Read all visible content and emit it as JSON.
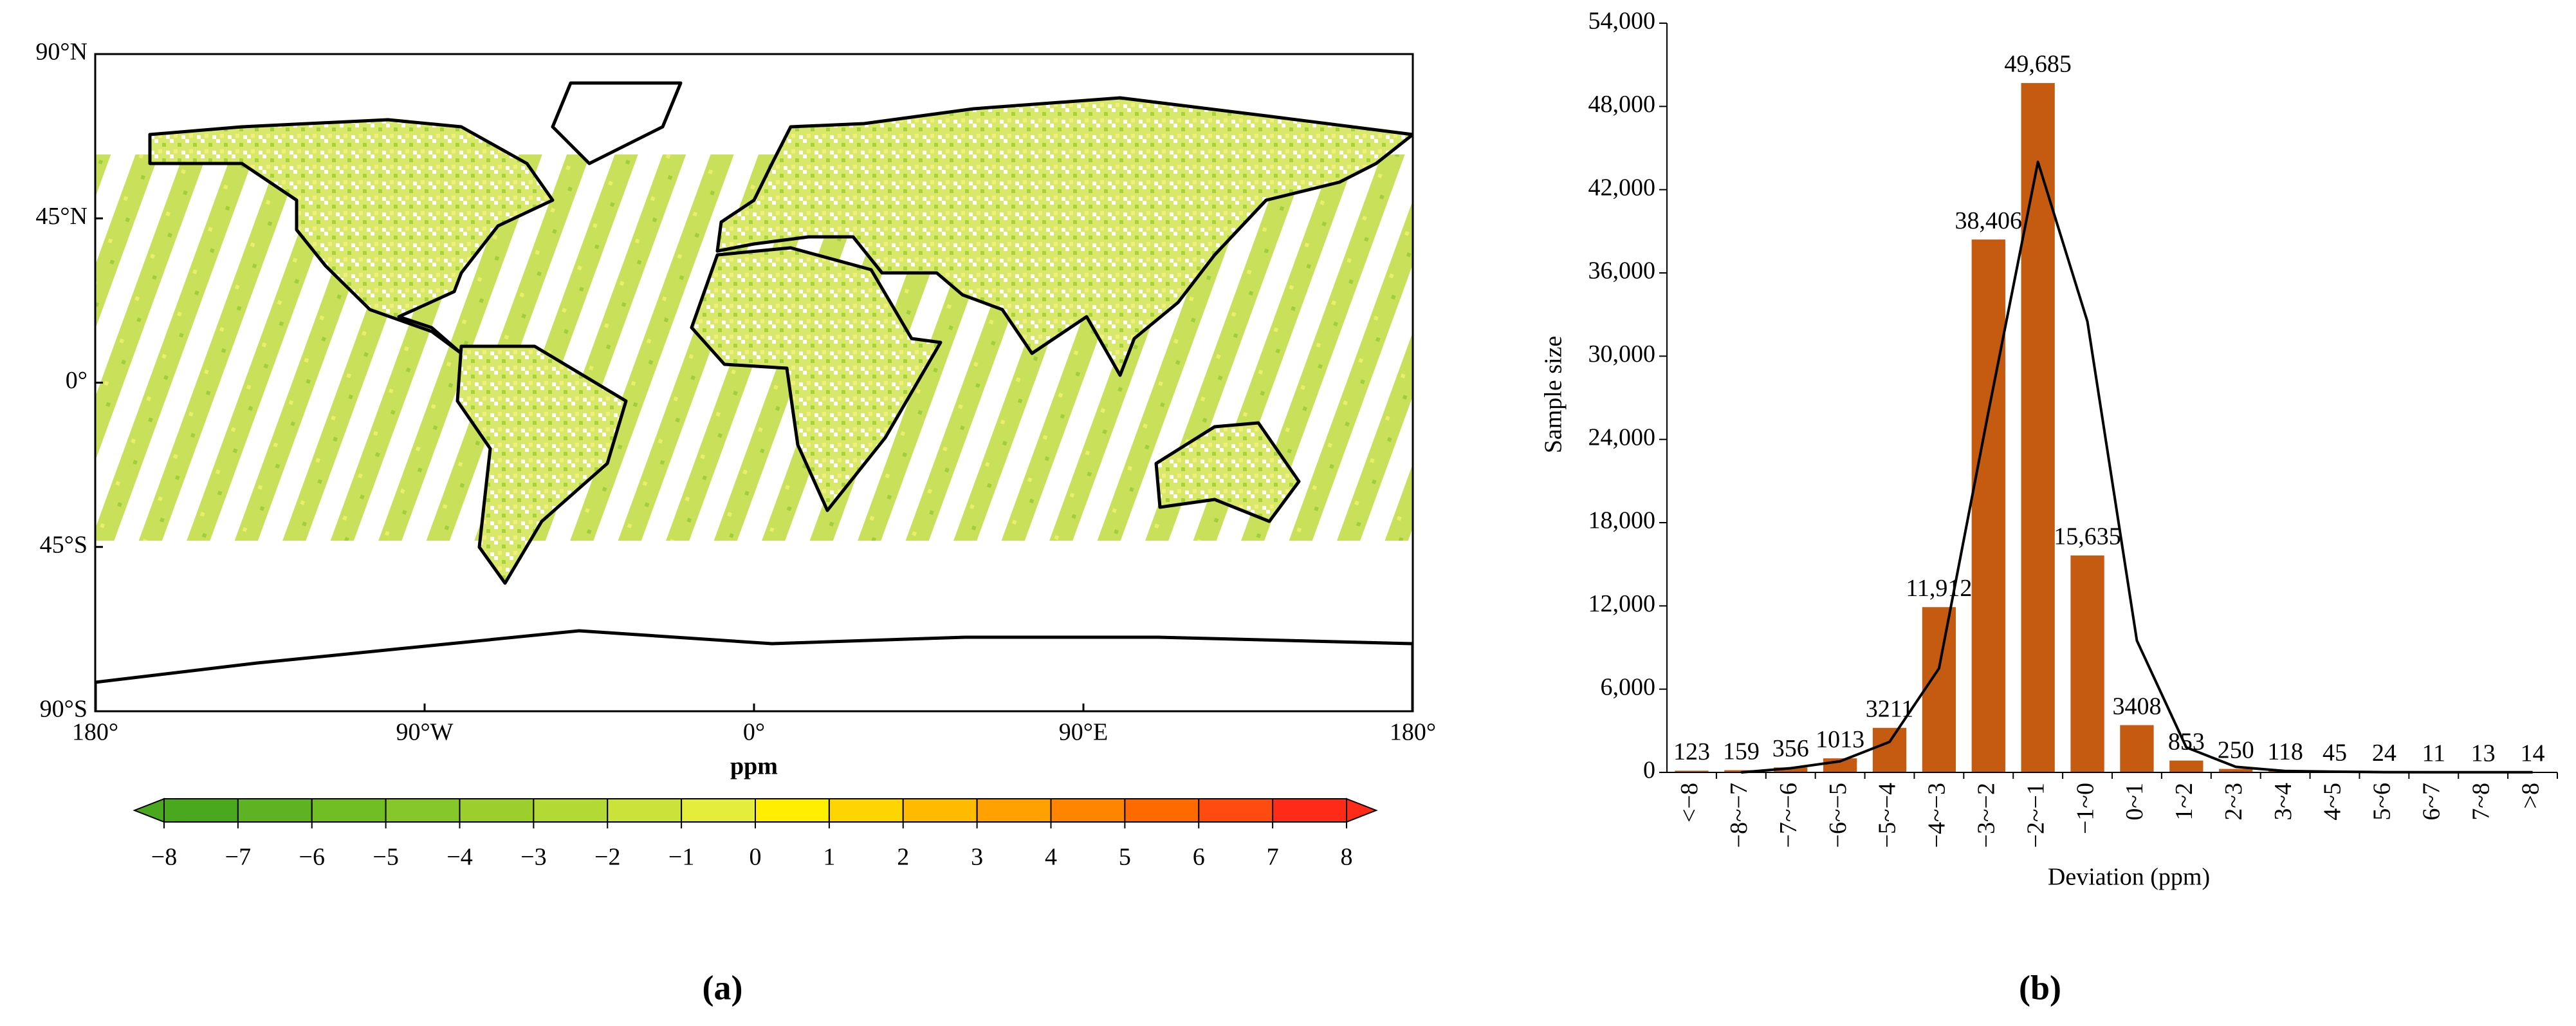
{
  "chart_data": [
    {
      "type": "map",
      "panel_label": "(a)",
      "xlim": [
        -180,
        180
      ],
      "ylim": [
        -90,
        90
      ],
      "xticks": [
        {
          "value": -180,
          "label": "180°"
        },
        {
          "value": -90,
          "label": "90°W"
        },
        {
          "value": 0,
          "label": "0°"
        },
        {
          "value": 90,
          "label": "90°E"
        },
        {
          "value": 180,
          "label": "180°"
        }
      ],
      "yticks": [
        {
          "value": 90,
          "label": "90°N"
        },
        {
          "value": 45,
          "label": "45°N"
        },
        {
          "value": 0,
          "label": "0°"
        },
        {
          "value": -45,
          "label": "45°S"
        },
        {
          "value": -90,
          "label": "90°S"
        }
      ],
      "colorbar": {
        "label": "ppm",
        "ticks": [
          {
            "value": -8,
            "label": "−8"
          },
          {
            "value": -7,
            "label": "−7"
          },
          {
            "value": -6,
            "label": "−6"
          },
          {
            "value": -5,
            "label": "−5"
          },
          {
            "value": -4,
            "label": "−4"
          },
          {
            "value": -3,
            "label": "−3"
          },
          {
            "value": -2,
            "label": "−2"
          },
          {
            "value": -1,
            "label": "−1"
          },
          0,
          1,
          2,
          3,
          4,
          5,
          6,
          7,
          8
        ],
        "colors": [
          "#4aa81e",
          "#5db322",
          "#70bd24",
          "#86c72a",
          "#9ccf2e",
          "#b3d934",
          "#cbe23a",
          "#e4ec3c",
          "#ffee00",
          "#ffd500",
          "#ffbb00",
          "#ffa100",
          "#ff8500",
          "#ff6a00",
          "#ff4a10",
          "#ff2a18"
        ]
      }
    },
    {
      "type": "bar",
      "panel_label": "(b)",
      "x_label": "Deviation (ppm)",
      "y_label": "Sample size",
      "categories": [
        "<−8",
        "−8~−7",
        "−7~−6",
        "−6~−5",
        "−5~−4",
        "−4~−3",
        "−3~−2",
        "−2~−1",
        "−1~0",
        "0~1",
        "1~2",
        "2~3",
        "3~4",
        "4~5",
        "5~6",
        "6~7",
        "7~8",
        ">8"
      ],
      "series": [
        {
          "type": "bar",
          "color": "#c55a11",
          "values": [
            123,
            159,
            356,
            1013,
            3211,
            11912,
            38406,
            49685,
            15635,
            3408,
            853,
            250,
            118,
            45,
            24,
            11,
            13,
            14
          ],
          "value_labels": [
            "123",
            "159",
            "356",
            "1013",
            "3211",
            "11,912",
            "38,406",
            "49,685",
            "15,635",
            "3408",
            "853",
            "250",
            "118",
            "45",
            "24",
            "11",
            "13",
            "14"
          ]
        },
        {
          "type": "line",
          "color": "#000000",
          "values": [
            null,
            0,
            300,
            800,
            2200,
            7500,
            26000,
            44000,
            32500,
            9500,
            1800,
            400,
            100,
            50,
            20,
            10,
            10,
            10
          ]
        }
      ],
      "ylim": [
        0,
        54000
      ],
      "yticks": [
        0,
        {
          "value": 6000,
          "label": "6,000"
        },
        {
          "value": 12000,
          "label": "12,000"
        },
        {
          "value": 18000,
          "label": "18,000"
        },
        {
          "value": 24000,
          "label": "24,000"
        },
        {
          "value": 30000,
          "label": "30,000"
        },
        {
          "value": 36000,
          "label": "36,000"
        },
        {
          "value": 42000,
          "label": "42,000"
        },
        {
          "value": 48000,
          "label": "48,000"
        },
        {
          "value": 54000,
          "label": "54,000"
        }
      ]
    }
  ]
}
